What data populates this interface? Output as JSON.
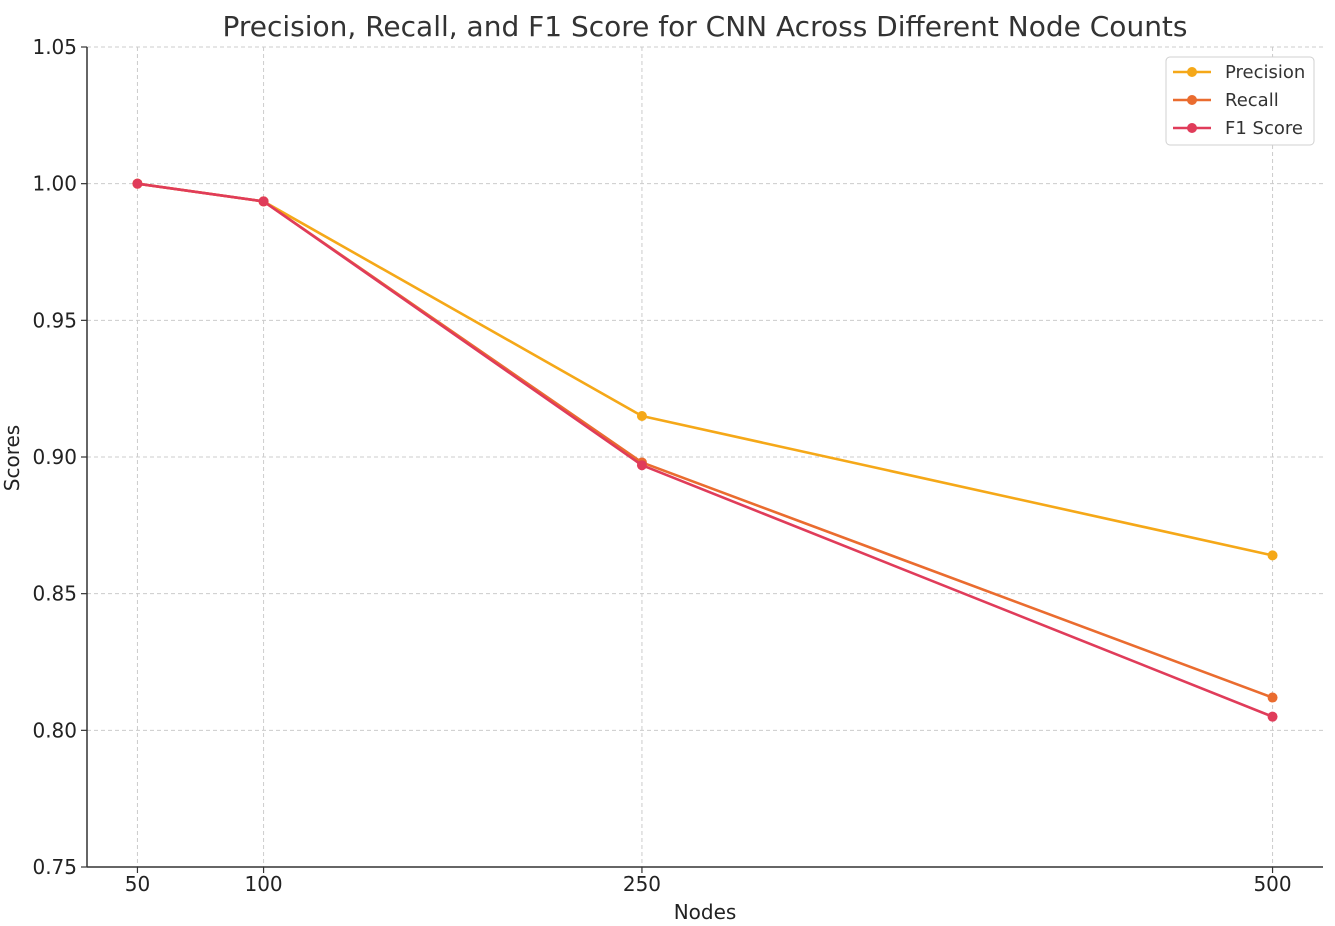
{
  "chart_data": {
    "type": "line",
    "title": "Precision, Recall, and F1 Score for CNN Across Different Node Counts",
    "xlabel": "Nodes",
    "ylabel": "Scores",
    "x": [
      50,
      100,
      250,
      500
    ],
    "x_ticks": [
      "50",
      "100",
      "250",
      "500"
    ],
    "y_ticks": [
      "0.75",
      "0.80",
      "0.85",
      "0.90",
      "0.95",
      "1.00",
      "1.05"
    ],
    "ylim": [
      0.75,
      1.05
    ],
    "xlim": [
      30,
      520
    ],
    "grid": true,
    "legend_position": "top-right",
    "series": [
      {
        "name": "Precision",
        "color": "#f5a818",
        "values": [
          1.0,
          0.9935,
          0.915,
          0.864
        ]
      },
      {
        "name": "Recall",
        "color": "#ea6c2f",
        "values": [
          1.0,
          0.9935,
          0.898,
          0.812
        ]
      },
      {
        "name": "F1 Score",
        "color": "#e03c5a",
        "values": [
          1.0,
          0.9935,
          0.897,
          0.805
        ]
      }
    ]
  }
}
